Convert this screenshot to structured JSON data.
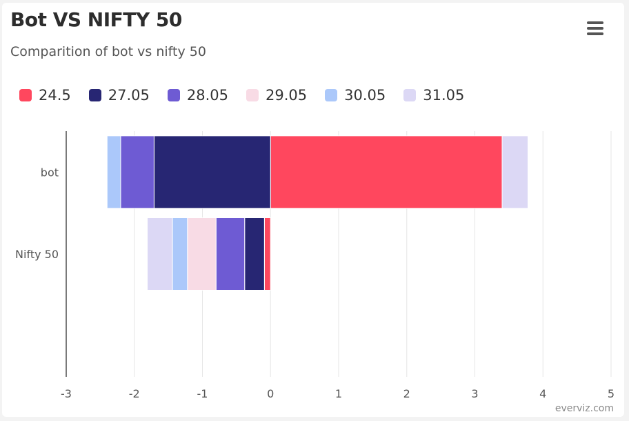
{
  "title": "Bot VS NIFTY 50",
  "subtitle": "Comparition of bot vs nifty 50",
  "menu_icon": "hamburger-menu-icon",
  "credit": "everviz.com",
  "chart_data": {
    "type": "bar",
    "orientation": "horizontal",
    "stacked": true,
    "title": "Bot VS NIFTY 50",
    "subtitle": "Comparition of bot vs nifty 50",
    "categories": [
      "bot",
      "Nifty 50"
    ],
    "xlim": [
      -3,
      5
    ],
    "xticks": [
      -3,
      -2,
      -1,
      0,
      1,
      2,
      3,
      4,
      5
    ],
    "grid": true,
    "legend_position": "top-left",
    "series": [
      {
        "name": "24.5",
        "color": "#ff475e",
        "values": [
          3.4,
          -0.09
        ]
      },
      {
        "name": "27.05",
        "color": "#272673",
        "values": [
          -1.71,
          -0.29
        ]
      },
      {
        "name": "28.05",
        "color": "#6e5bd3",
        "values": [
          -0.49,
          -0.42
        ]
      },
      {
        "name": "29.05",
        "color": "#f8dbe5",
        "values": [
          0,
          -0.42
        ]
      },
      {
        "name": "30.05",
        "color": "#abc8fa",
        "values": [
          -0.2,
          -0.22
        ]
      },
      {
        "name": "31.05",
        "color": "#dcd8f5",
        "values": [
          0.38,
          -0.37
        ]
      }
    ]
  }
}
